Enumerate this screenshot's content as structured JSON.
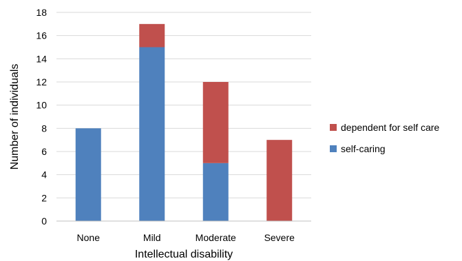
{
  "chart_data": {
    "type": "bar",
    "stacked": true,
    "categories": [
      "None",
      "Mild",
      "Moderate",
      "Severe"
    ],
    "series": [
      {
        "name": "self-caring",
        "values": [
          8,
          15,
          5,
          0
        ],
        "color": "#4f81bd"
      },
      {
        "name": "dependent for self care",
        "values": [
          0,
          2,
          7,
          7
        ],
        "color": "#c0504d"
      }
    ],
    "title": "",
    "xlabel": "Intellectual disability",
    "ylabel": "Number of individuals",
    "ylim": [
      0,
      18
    ],
    "yticks": [
      0,
      2,
      4,
      6,
      8,
      10,
      12,
      14,
      16,
      18
    ],
    "grid": true,
    "legend_position": "right"
  }
}
